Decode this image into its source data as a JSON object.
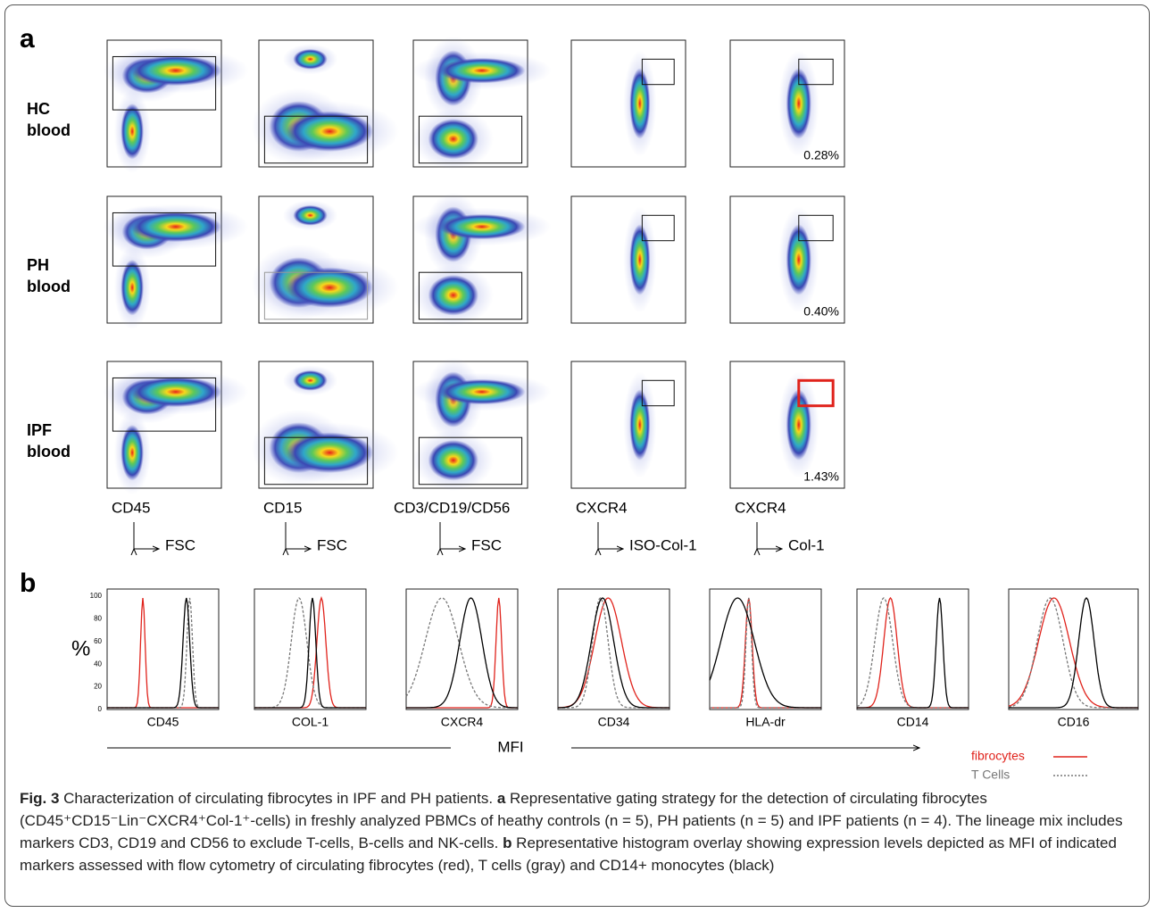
{
  "panel_a": {
    "label": "a",
    "rows": [
      {
        "name": "HC",
        "sub": "blood",
        "percent": "0.28%"
      },
      {
        "name": "PH",
        "sub": "blood",
        "percent": "0.40%"
      },
      {
        "name": "IPF",
        "sub": "blood",
        "percent": "1.43%"
      }
    ],
    "axes": [
      {
        "y": "CD45",
        "x": "FSC"
      },
      {
        "y": "CD15",
        "x": "FSC"
      },
      {
        "y": "CD3/CD19/CD56",
        "x": "FSC"
      },
      {
        "y": "CXCR4",
        "x": "ISO-Col-1"
      },
      {
        "y": "CXCR4",
        "x": "Col-1"
      }
    ]
  },
  "panel_b": {
    "label": "b",
    "y_label": "%",
    "yticks": [
      "100",
      "80",
      "60",
      "40",
      "20",
      "0"
    ],
    "markers": [
      "CD45",
      "COL-1",
      "CXCR4",
      "CD34",
      "HLA-dr",
      "CD14",
      "CD16"
    ],
    "x_label": "MFI",
    "legend": [
      {
        "name": "fibrocytes",
        "color": "#e0231c"
      },
      {
        "name": "T Cells",
        "color": "#777777"
      },
      {
        "name": "CD14+ Mo",
        "color": "#000000"
      }
    ]
  },
  "caption": {
    "fig": "Fig. 3",
    "title": " Characterization of circulating fibrocytes in IPF and PH patients. ",
    "a": "a",
    "a_text": " Representative gating strategy for the detection of circulating fibrocytes (CD45⁺CD15⁻Lin⁻CXCR4⁺Col-1⁺-cells) in freshly analyzed PBMCs of heathy controls (n = 5), PH patients (n = 5) and IPF patients (n = 4). The lineage mix includes markers CD3, CD19 and CD56 to exclude T-cells, B-cells and NK-cells. ",
    "b": "b",
    "b_text": " Representative histogram overlay showing expression levels depicted as MFI of indicated markers assessed with flow cytometry of circulating fibrocytes (red), T cells (gray) and CD14+ monocytes (black)"
  }
}
